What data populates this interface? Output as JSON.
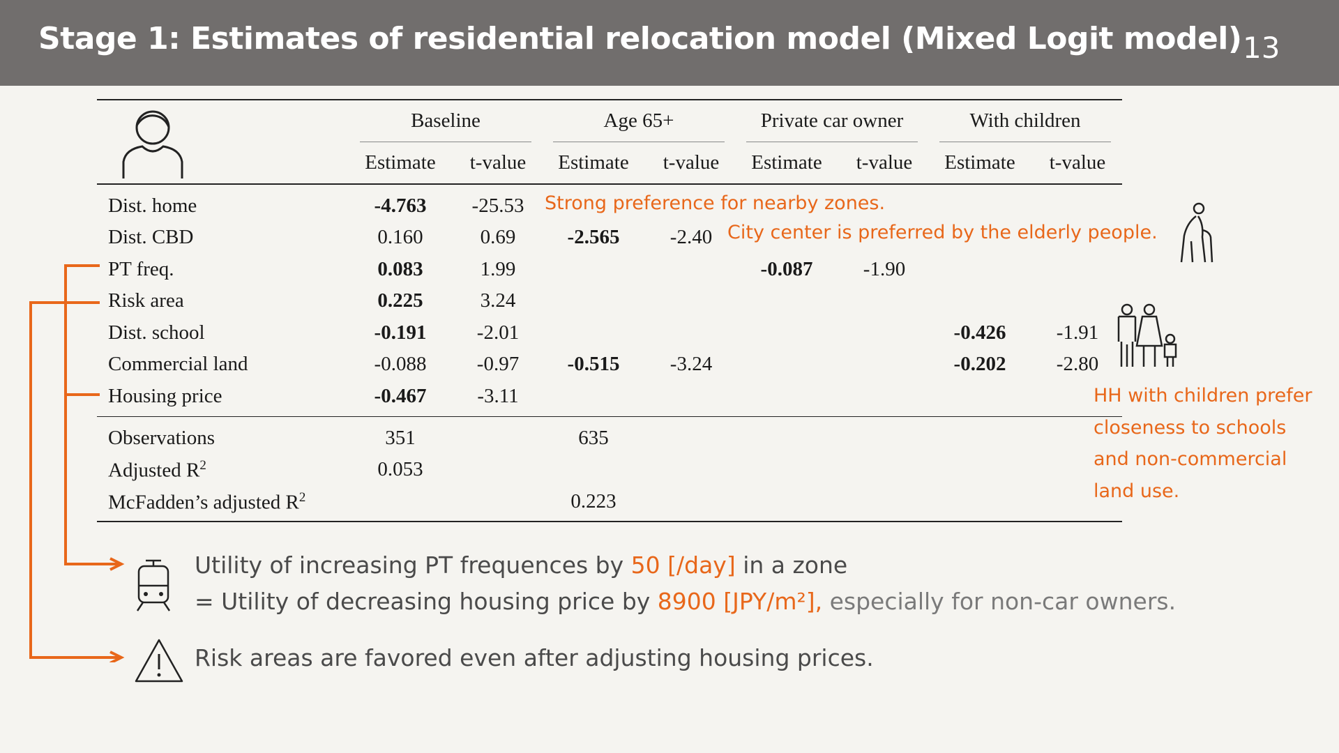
{
  "header": {
    "title": "Stage 1: Estimates of residential relocation model (Mixed Logit model)",
    "page_number": "13"
  },
  "table": {
    "groups": [
      "Baseline",
      "Age 65+",
      "Private car owner",
      "With children"
    ],
    "subheaders": [
      "Estimate",
      "t-value",
      "Estimate",
      "t-value",
      "Estimate",
      "t-value",
      "Estimate",
      "t-value"
    ],
    "rows": [
      {
        "label": "Dist. home",
        "b_est": "-4.763",
        "b_t": "-25.53"
      },
      {
        "label": "Dist. CBD",
        "b_est": "0.160",
        "b_t": "0.69",
        "a_est": "-2.565",
        "a_t": "-2.40"
      },
      {
        "label": "PT freq.",
        "b_est": "0.083",
        "b_t": "1.99",
        "p_est": "-0.087",
        "p_t": "-1.90"
      },
      {
        "label": "Risk area",
        "b_est": "0.225",
        "b_t": "3.24"
      },
      {
        "label": "Dist. school",
        "b_est": "-0.191",
        "b_t": "-2.01",
        "c_est": "-0.426",
        "c_t": "-1.91"
      },
      {
        "label": "Commercial land",
        "b_est": "-0.088",
        "b_t": "-0.97",
        "a_est": "-0.515",
        "a_t": "-3.24",
        "c_est": "-0.202",
        "c_t": "-2.80"
      },
      {
        "label": "Housing price",
        "b_est": "-0.467",
        "b_t": "-3.11"
      }
    ],
    "stats": [
      {
        "label": "Observations",
        "b": "351",
        "a": "635"
      },
      {
        "label": "Adjusted R",
        "sup": "2",
        "b": "0.053"
      },
      {
        "label": "McFadden’s adjusted R",
        "sup": "2",
        "a": "0.223"
      }
    ]
  },
  "notes": {
    "dist_home": "Strong preference for nearby zones.",
    "elderly": "City center is preferred by the elderly people.",
    "children": [
      "HH with children prefer",
      "closeness to schools",
      "and non-commercial",
      "land use."
    ]
  },
  "findings": {
    "pt_line1_a": "Utility of increasing PT frequences by ",
    "pt_line1_b": "50 [/day]",
    "pt_line1_c": " in a zone",
    "pt_line2_a": "= Utility of decreasing housing price by ",
    "pt_line2_b": "8900 [JPY/m²],",
    "pt_line2_c": " especially for non-car owners.",
    "risk": "Risk areas are favored even after adjusting housing prices."
  },
  "icons": [
    "person-icon",
    "elderly-person-icon",
    "family-icon",
    "train-icon",
    "warning-icon"
  ],
  "colors": {
    "accent": "#e8671a",
    "header_bg": "#716e6d",
    "background": "#f5f4f0"
  }
}
